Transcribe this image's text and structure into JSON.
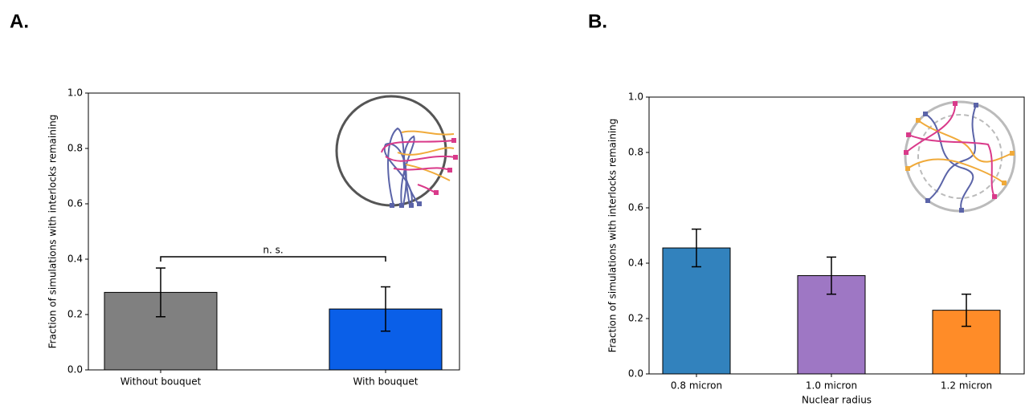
{
  "chart_data": [
    {
      "type": "bar",
      "panel_label": "A.",
      "ylabel": "Fraction of simulations with interlocks remaining",
      "categories": [
        "Without bouquet",
        "With bouquet"
      ],
      "values": [
        0.28,
        0.22
      ],
      "errors": [
        0.088,
        0.08
      ],
      "colors": [
        "#808080",
        "#0a5fe8"
      ],
      "annotation": "n. s.",
      "ylim": [
        0,
        1
      ],
      "yticks": [
        {
          "value": 0,
          "label": "0.0"
        },
        {
          "value": 0.2,
          "label": "0.2"
        },
        {
          "value": 0.4,
          "label": "0.4"
        },
        {
          "value": 0.6,
          "label": "0.6"
        },
        {
          "value": 0.8,
          "label": "0.8"
        },
        {
          "value": 1,
          "label": "1.0"
        }
      ]
    },
    {
      "type": "bar",
      "panel_label": "B.",
      "ylabel": "Fraction of simulations with interlocks remaining",
      "xlabel": "Nuclear radius",
      "categories": [
        "0.8 micron",
        "1.0 micron",
        "1.2 micron"
      ],
      "values": [
        0.455,
        0.355,
        0.23
      ],
      "errors": [
        0.068,
        0.067,
        0.058
      ],
      "colors": [
        "#3282bd",
        "#9e77c4",
        "#ff8c28"
      ],
      "ylim": [
        0,
        1
      ],
      "yticks": [
        {
          "value": 0,
          "label": "0.0"
        },
        {
          "value": 0.2,
          "label": "0.2"
        },
        {
          "value": 0.4,
          "label": "0.4"
        },
        {
          "value": 0.6,
          "label": "0.6"
        },
        {
          "value": 0.8,
          "label": "0.8"
        },
        {
          "value": 1,
          "label": "1.0"
        }
      ]
    }
  ]
}
